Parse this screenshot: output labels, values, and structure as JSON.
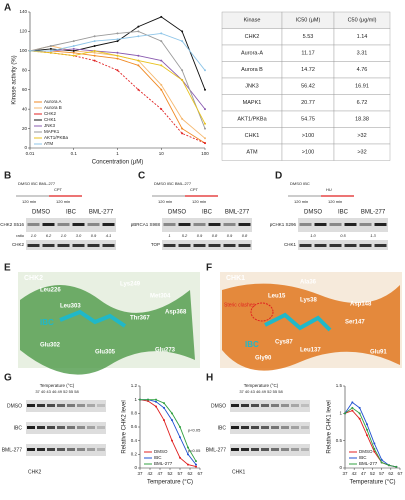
{
  "panel_labels": [
    "A",
    "B",
    "C",
    "D",
    "E",
    "F",
    "G",
    "H"
  ],
  "chart_data": [
    {
      "type": "line",
      "x_label": "Concentration (μM)",
      "y_label": "Kinase activity (%)",
      "log_x": true,
      "x": [
        0.01,
        0.03,
        0.1,
        0.3,
        1,
        3,
        10,
        30,
        100
      ],
      "xlim": [
        0.01,
        100
      ],
      "xticks": [
        0.01,
        0.1,
        1,
        10,
        100
      ],
      "ylim": [
        0,
        140
      ],
      "yticks": [
        0,
        20,
        40,
        60,
        80,
        100,
        120,
        140
      ],
      "legend": "lower left",
      "series": [
        {
          "name": "Aurora A",
          "color": "#f08a24",
          "values": [
            100,
            100,
            98,
            95,
            92,
            85,
            60,
            20,
            5
          ]
        },
        {
          "name": "Aurora B",
          "color": "#f5b971",
          "values": [
            100,
            105,
            100,
            98,
            95,
            90,
            65,
            30,
            10
          ]
        },
        {
          "name": "CHK2",
          "color": "#e02020",
          "linestyle": "dashed",
          "values": [
            100,
            98,
            95,
            90,
            80,
            60,
            40,
            15,
            5
          ]
        },
        {
          "name": "CHK1",
          "color": "#111111",
          "values": [
            100,
            102,
            100,
            105,
            110,
            125,
            135,
            120,
            60
          ]
        },
        {
          "name": "JNK3",
          "color": "#8a5bb0",
          "values": [
            100,
            100,
            102,
            100,
            98,
            95,
            90,
            70,
            40
          ]
        },
        {
          "name": "MAPK1",
          "color": "#9a9a9a",
          "values": [
            100,
            105,
            110,
            115,
            118,
            120,
            110,
            80,
            20
          ]
        },
        {
          "name": "AKT1/PKBa",
          "color": "#e8c21c",
          "values": [
            100,
            98,
            95,
            100,
            95,
            90,
            85,
            70,
            25
          ]
        },
        {
          "name": "ATM",
          "color": "#8ec5e8",
          "values": [
            100,
            100,
            105,
            110,
            112,
            115,
            118,
            110,
            80
          ]
        }
      ]
    },
    {
      "type": "line",
      "x_label": "Temperature (°C)",
      "y_label": "Relative CHK2 level",
      "x": [
        37,
        41,
        45,
        49,
        53,
        57,
        61,
        65
      ],
      "xlim": [
        37,
        67
      ],
      "xticks": [
        37,
        42,
        47,
        52,
        57,
        62,
        67
      ],
      "ylim": [
        0,
        1.2
      ],
      "yticks": [
        0,
        0.2,
        0.4,
        0.6,
        0.8,
        1,
        1.2
      ],
      "legend": "lower left",
      "annotations": [
        "p<0.05",
        "p<0.05"
      ],
      "series": [
        {
          "name": "DMSO",
          "color": "#e02020",
          "values": [
            1,
            0.98,
            0.9,
            0.7,
            0.4,
            0.15,
            0.05,
            0.02
          ]
        },
        {
          "name": "IBC",
          "color": "#2050d0",
          "values": [
            1,
            1,
            0.97,
            0.88,
            0.7,
            0.45,
            0.2,
            0.05
          ]
        },
        {
          "name": "BML-277",
          "color": "#30a040",
          "values": [
            1,
            1,
            1,
            0.95,
            0.8,
            0.6,
            0.3,
            0.1
          ]
        }
      ]
    },
    {
      "type": "line",
      "x_label": "Temperature (°C)",
      "y_label": "Relative CHK1 level",
      "x": [
        37,
        41,
        45,
        49,
        53,
        57,
        61,
        65
      ],
      "xlim": [
        37,
        67
      ],
      "xticks": [
        37,
        42,
        47,
        52,
        57,
        62,
        67
      ],
      "ylim": [
        0,
        1.5
      ],
      "yticks": [
        0,
        0.5,
        1,
        1.5
      ],
      "legend": "lower left",
      "series": [
        {
          "name": "DMSO",
          "color": "#e02020",
          "values": [
            1,
            1.05,
            0.9,
            0.6,
            0.3,
            0.1,
            0.05,
            0.02
          ]
        },
        {
          "name": "IBC",
          "color": "#2050d0",
          "values": [
            1,
            1.2,
            1.1,
            0.8,
            0.45,
            0.15,
            0.05,
            0.02
          ]
        },
        {
          "name": "BML-277",
          "color": "#30a040",
          "values": [
            1,
            1.1,
            1,
            0.7,
            0.35,
            0.1,
            0.05,
            0.02
          ]
        }
      ]
    }
  ],
  "table": {
    "header": [
      "Kinase",
      "IC50 (μM)",
      "C50 (μg/ml)"
    ],
    "rows": [
      [
        "CHK2",
        "5.53",
        "1.14"
      ],
      [
        "Aurora-A",
        "11.17",
        "3.31"
      ],
      [
        "Aurora B",
        "14.72",
        "4.76"
      ],
      [
        "JNK3",
        "56.42",
        "16.91"
      ],
      [
        "MAPK1",
        "20.77",
        "6.72"
      ],
      [
        "AKT1/PKBa",
        "54.75",
        "18.38"
      ],
      [
        "CHK1",
        ">100",
        ">32"
      ],
      [
        "ATM",
        ">100",
        ">32"
      ]
    ]
  },
  "blot_b": {
    "scheme": "DMSO IBC BML-277",
    "drug": "CPT",
    "times": [
      "120 min",
      "120 min"
    ],
    "treatments": [
      "DMSO",
      "IBC",
      "BML-277"
    ],
    "antibodies": [
      "pCHK2 S516",
      "CHK2"
    ],
    "ratio_label": "ratio",
    "ratios": [
      "1.0",
      "6.2",
      "1.0",
      "3.0",
      "0.9",
      "4.1"
    ]
  },
  "blot_c": {
    "scheme": "DMSO IBC BML-277",
    "drug": "CPT",
    "times": [
      "120 min",
      "120 min"
    ],
    "treatments": [
      "DMSO",
      "IBC",
      "BML-277"
    ],
    "antibodies": [
      "pBRCA1 S988",
      "TOP"
    ],
    "ratios": [
      "1",
      "5.2",
      "0.9",
      "0.8",
      "0.9",
      "0.8"
    ]
  },
  "blot_d": {
    "scheme": "DMSO IBC",
    "drug": "HU",
    "times": [
      "120 min",
      "120 min"
    ],
    "treatments": [
      "DMSO",
      "IBC",
      "BML-277"
    ],
    "antibodies": [
      "pCHK1 S296",
      "CHK1"
    ],
    "ratios": [
      "1.0",
      "0.5",
      "1.3"
    ]
  },
  "structure_e": {
    "title": "CHK2",
    "ligand": "IBC",
    "residues": [
      "Leu226",
      "Lys249",
      "Met304",
      "Leu303",
      "Glu302",
      "Thr367",
      "Asp368",
      "Glu273",
      "Glu305"
    ]
  },
  "structure_f": {
    "title": "CHK1",
    "ligand": "IBC",
    "note": "Steric clashes",
    "residues": [
      "Ala36",
      "Leu15",
      "Lys38",
      "Asp148",
      "Ser147",
      "Glu91",
      "Leu137",
      "Cys87",
      "Gly90"
    ]
  },
  "cetsa_g": {
    "header": "Temperature (°C)",
    "temps": "37 40 43 46 49 52 55 58",
    "rows": [
      "DMSO",
      "IBC",
      "BML-277"
    ],
    "protein": "CHK2"
  },
  "cetsa_h": {
    "header": "Temperature (°C)",
    "temps": "37 40 43 46 49 52 55 58",
    "rows": [
      "DMSO",
      "IBC",
      "BML-277"
    ],
    "protein": "CHK1"
  }
}
